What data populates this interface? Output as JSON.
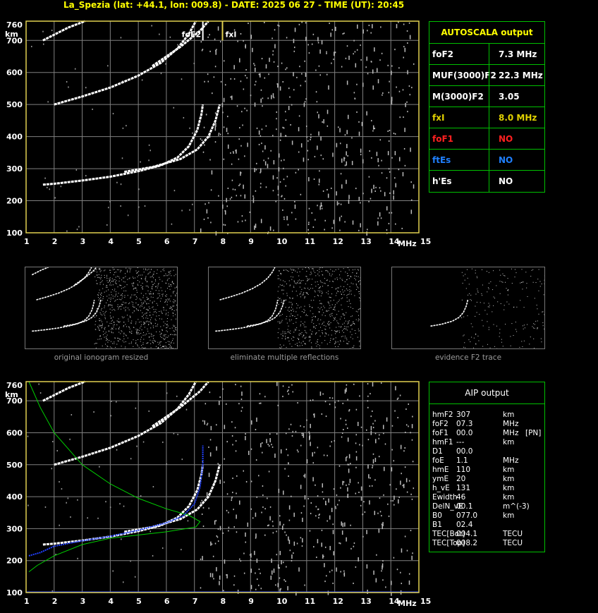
{
  "header": "La_Spezia (lat: +44.1, lon: 009.8) - DATE: 2025 06 27 - TIME (UT): 20:45",
  "chart_data": {
    "type": "scatter",
    "xlabel": "MHz",
    "ylabel": "km",
    "xlim": [
      1,
      15
    ],
    "ylim": [
      100,
      760
    ],
    "x_ticks": [
      1,
      2,
      3,
      4,
      5,
      6,
      7,
      8,
      9,
      10,
      11,
      12,
      13,
      14,
      15
    ],
    "y_ticks": [
      100,
      200,
      300,
      400,
      500,
      600,
      700
    ],
    "y_top_label": "760",
    "grid": true,
    "markers": {
      "foF2_label": "foF2",
      "foF2": 7.3,
      "fxI_label": "fxI",
      "fxI": 8.0
    },
    "traces": [
      {
        "name": "o-trace",
        "points": [
          [
            1.6,
            250
          ],
          [
            2,
            253
          ],
          [
            3,
            263
          ],
          [
            4,
            275
          ],
          [
            5,
            292
          ],
          [
            5.8,
            310
          ],
          [
            6.4,
            335
          ],
          [
            6.8,
            370
          ],
          [
            7.1,
            420
          ],
          [
            7.25,
            470
          ],
          [
            7.3,
            500
          ]
        ]
      },
      {
        "name": "x-trace",
        "points": [
          [
            4.5,
            290
          ],
          [
            5.5,
            305
          ],
          [
            6.5,
            330
          ],
          [
            7.1,
            360
          ],
          [
            7.5,
            400
          ],
          [
            7.75,
            450
          ],
          [
            7.9,
            500
          ]
        ]
      },
      {
        "name": "o-multi",
        "points": [
          [
            2,
            500
          ],
          [
            3,
            525
          ],
          [
            4,
            553
          ],
          [
            5,
            590
          ],
          [
            5.8,
            630
          ],
          [
            6.4,
            675
          ],
          [
            6.8,
            720
          ],
          [
            7.05,
            760
          ]
        ]
      },
      {
        "name": "x-multi",
        "points": [
          [
            5.5,
            620
          ],
          [
            6.5,
            680
          ],
          [
            7.2,
            730
          ],
          [
            7.5,
            760
          ]
        ]
      },
      {
        "name": "triple",
        "points": [
          [
            1.6,
            700
          ],
          [
            2.5,
            740
          ],
          [
            3.1,
            760
          ]
        ]
      }
    ],
    "profile_green": [
      [
        1.1,
        760
      ],
      [
        1.5,
        680
      ],
      [
        2,
        600
      ],
      [
        3,
        500
      ],
      [
        4,
        440
      ],
      [
        5,
        395
      ],
      [
        6,
        362
      ],
      [
        6.8,
        342
      ],
      [
        7.2,
        322
      ],
      [
        7.05,
        305
      ],
      [
        6,
        290
      ],
      [
        4,
        270
      ],
      [
        3,
        250
      ],
      [
        2,
        215
      ],
      [
        1.4,
        185
      ],
      [
        1.1,
        165
      ]
    ],
    "profile_blue": [
      [
        1.1,
        215
      ],
      [
        1.5,
        225
      ],
      [
        2,
        245
      ],
      [
        3,
        262
      ],
      [
        4,
        276
      ],
      [
        5,
        295
      ],
      [
        6,
        318
      ],
      [
        6.6,
        340
      ],
      [
        7,
        378
      ],
      [
        7.2,
        430
      ],
      [
        7.3,
        500
      ],
      [
        7.3,
        560
      ]
    ]
  },
  "autoscala": {
    "title": "AUTOSCALA output",
    "rows": [
      {
        "label": "foF2",
        "value": "7.3 MHz",
        "color": "#ffffff"
      },
      {
        "label": "MUF(3000)F2",
        "value": "22.3 MHz",
        "color": "#ffffff"
      },
      {
        "label": "M(3000)F2",
        "value": "3.05",
        "color": "#ffffff"
      },
      {
        "label": "fxI",
        "value": "8.0 MHz",
        "color": "#e0d000"
      },
      {
        "label": "foF1",
        "value": "NO",
        "color": "#ff2020"
      },
      {
        "label": "ftEs",
        "value": "NO",
        "color": "#2080ff"
      },
      {
        "label": "h'Es",
        "value": "NO",
        "color": "#ffffff"
      }
    ]
  },
  "thumbs": [
    {
      "caption": "original ionogram resized"
    },
    {
      "caption": "eliminate multiple reflections"
    },
    {
      "caption": "evidence F2 trace"
    }
  ],
  "aip": {
    "title": "AIP output",
    "rows": [
      {
        "label": "hmF2",
        "value": "307",
        "unit": "km",
        "extra": ""
      },
      {
        "label": "foF2",
        "value": "07.3",
        "unit": "MHz",
        "extra": ""
      },
      {
        "label": "foF1",
        "value": "00.0",
        "unit": "MHz",
        "extra": "[PN]"
      },
      {
        "label": "hmF1",
        "value": "---",
        "unit": "km",
        "extra": ""
      },
      {
        "label": "D1",
        "value": "00.0",
        "unit": "",
        "extra": ""
      },
      {
        "label": "foE",
        "value": "1.1",
        "unit": "MHz",
        "extra": ""
      },
      {
        "label": "hmE",
        "value": "110",
        "unit": "km",
        "extra": ""
      },
      {
        "label": "ymE",
        "value": "20",
        "unit": "km",
        "extra": ""
      },
      {
        "label": "h_vE",
        "value": "131",
        "unit": "km",
        "extra": ""
      },
      {
        "label": "Ewidth",
        "value": "46",
        "unit": "km",
        "extra": ""
      },
      {
        "label": "DelN_vE",
        "value": "00.1",
        "unit": "m^(-3)",
        "extra": ""
      },
      {
        "label": "B0",
        "value": "077.0",
        "unit": "km",
        "extra": ""
      },
      {
        "label": "B1",
        "value": "02.4",
        "unit": "",
        "extra": ""
      },
      {
        "label": "TEC[Bot]",
        "value": "004.1",
        "unit": "TECU",
        "extra": ""
      },
      {
        "label": "TEC[Top]",
        "value": "008.2",
        "unit": "TECU",
        "extra": ""
      }
    ]
  },
  "colors": {
    "grid": "#808080",
    "frame": "#e0d050",
    "trace": "#ffffff",
    "green": "#00d000",
    "blue": "#2040ff",
    "accent": "#ffff00"
  }
}
